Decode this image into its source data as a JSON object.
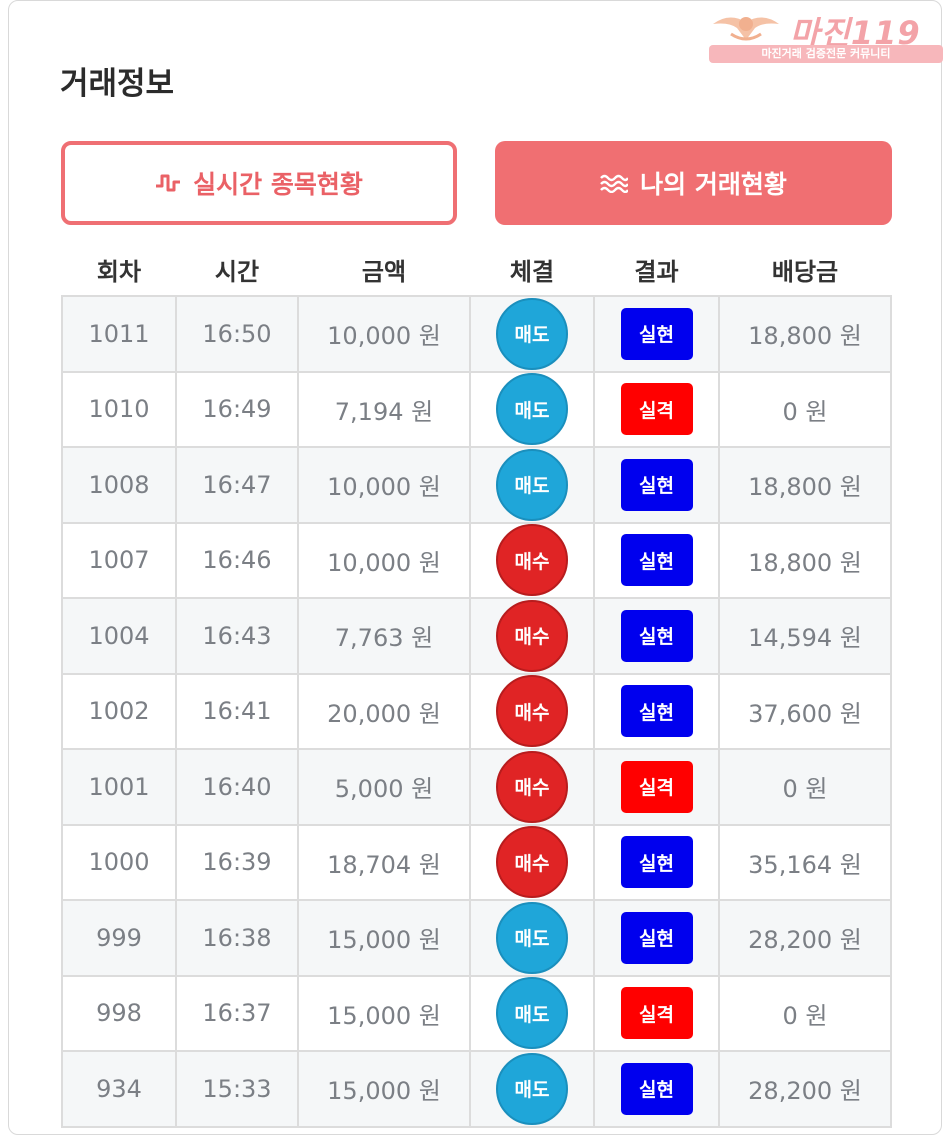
{
  "page": {
    "title": "거래정보",
    "logo": {
      "brand": "마진119",
      "tagline": "마진거래 검증전문 커뮤니티"
    }
  },
  "buttons": {
    "live": {
      "label": "실시간 종목현황",
      "icon": "pulse-wave-icon"
    },
    "mine": {
      "label": "나의 거래현황",
      "icon": "waves-icon"
    }
  },
  "colors": {
    "accent": "#f06f72",
    "sell": "#1fa6d9",
    "buy": "#e02425",
    "win": "#0000ee",
    "lose": "#ff0000"
  },
  "table": {
    "headers": [
      "회차",
      "시간",
      "금액",
      "체결",
      "결과",
      "배당금"
    ],
    "rows": [
      {
        "round": "1011",
        "time": "16:50",
        "amount": "10,000 원",
        "type": "매도",
        "type_kind": "sell",
        "result": "실현",
        "result_kind": "win",
        "payout": "18,800 원"
      },
      {
        "round": "1010",
        "time": "16:49",
        "amount": "7,194 원",
        "type": "매도",
        "type_kind": "sell",
        "result": "실격",
        "result_kind": "lose",
        "payout": "0 원"
      },
      {
        "round": "1008",
        "time": "16:47",
        "amount": "10,000 원",
        "type": "매도",
        "type_kind": "sell",
        "result": "실현",
        "result_kind": "win",
        "payout": "18,800 원"
      },
      {
        "round": "1007",
        "time": "16:46",
        "amount": "10,000 원",
        "type": "매수",
        "type_kind": "buy",
        "result": "실현",
        "result_kind": "win",
        "payout": "18,800 원"
      },
      {
        "round": "1004",
        "time": "16:43",
        "amount": "7,763 원",
        "type": "매수",
        "type_kind": "buy",
        "result": "실현",
        "result_kind": "win",
        "payout": "14,594 원"
      },
      {
        "round": "1002",
        "time": "16:41",
        "amount": "20,000 원",
        "type": "매수",
        "type_kind": "buy",
        "result": "실현",
        "result_kind": "win",
        "payout": "37,600 원"
      },
      {
        "round": "1001",
        "time": "16:40",
        "amount": "5,000 원",
        "type": "매수",
        "type_kind": "buy",
        "result": "실격",
        "result_kind": "lose",
        "payout": "0 원"
      },
      {
        "round": "1000",
        "time": "16:39",
        "amount": "18,704 원",
        "type": "매수",
        "type_kind": "buy",
        "result": "실현",
        "result_kind": "win",
        "payout": "35,164 원"
      },
      {
        "round": "999",
        "time": "16:38",
        "amount": "15,000 원",
        "type": "매도",
        "type_kind": "sell",
        "result": "실현",
        "result_kind": "win",
        "payout": "28,200 원"
      },
      {
        "round": "998",
        "time": "16:37",
        "amount": "15,000 원",
        "type": "매도",
        "type_kind": "sell",
        "result": "실격",
        "result_kind": "lose",
        "payout": "0 원"
      },
      {
        "round": "934",
        "time": "15:33",
        "amount": "15,000 원",
        "type": "매도",
        "type_kind": "sell",
        "result": "실현",
        "result_kind": "win",
        "payout": "28,200 원"
      }
    ]
  }
}
